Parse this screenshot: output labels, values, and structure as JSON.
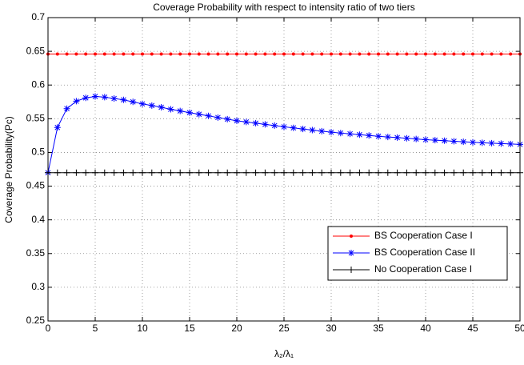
{
  "chart_data": {
    "type": "line",
    "title": "Coverage Probability with respect to intensity ratio of two tiers",
    "xlabel": "λ₂/λ₁",
    "ylabel": "Coverage Probability(Pc)",
    "x": [
      0,
      1,
      2,
      3,
      4,
      5,
      6,
      7,
      8,
      9,
      10,
      11,
      12,
      13,
      14,
      15,
      16,
      17,
      18,
      19,
      20,
      21,
      22,
      23,
      24,
      25,
      26,
      27,
      28,
      29,
      30,
      31,
      32,
      33,
      34,
      35,
      36,
      37,
      38,
      39,
      40,
      41,
      42,
      43,
      44,
      45,
      46,
      47,
      48,
      49,
      50
    ],
    "series": [
      {
        "name": "BS Cooperation Case I",
        "color": "#ff0000",
        "marker": "dot",
        "values": [
          0.646,
          0.646,
          0.646,
          0.646,
          0.646,
          0.646,
          0.646,
          0.646,
          0.646,
          0.646,
          0.646,
          0.646,
          0.646,
          0.646,
          0.646,
          0.646,
          0.646,
          0.646,
          0.646,
          0.646,
          0.646,
          0.646,
          0.646,
          0.646,
          0.646,
          0.646,
          0.646,
          0.646,
          0.646,
          0.646,
          0.646,
          0.646,
          0.646,
          0.646,
          0.646,
          0.646,
          0.646,
          0.646,
          0.646,
          0.646,
          0.646,
          0.646,
          0.646,
          0.646,
          0.646,
          0.646,
          0.646,
          0.646,
          0.646,
          0.646,
          0.646
        ]
      },
      {
        "name": "BS Cooperation Case II",
        "color": "#0000ff",
        "marker": "star",
        "values": [
          0.47,
          0.537,
          0.565,
          0.576,
          0.581,
          0.583,
          0.582,
          0.58,
          0.578,
          0.575,
          0.572,
          0.5695,
          0.567,
          0.564,
          0.5615,
          0.559,
          0.5566,
          0.5542,
          0.5518,
          0.5494,
          0.547,
          0.5452,
          0.5434,
          0.5416,
          0.5398,
          0.538,
          0.5364,
          0.5348,
          0.5332,
          0.5316,
          0.53,
          0.5288,
          0.5276,
          0.5264,
          0.5252,
          0.524,
          0.523,
          0.522,
          0.521,
          0.52,
          0.519,
          0.5182,
          0.5174,
          0.5166,
          0.5158,
          0.515,
          0.5144,
          0.5138,
          0.5132,
          0.5126,
          0.512
        ]
      },
      {
        "name": "No Cooperation Case I",
        "color": "#000000",
        "marker": "plus",
        "values": [
          0.47,
          0.47,
          0.47,
          0.47,
          0.47,
          0.47,
          0.47,
          0.47,
          0.47,
          0.47,
          0.47,
          0.47,
          0.47,
          0.47,
          0.47,
          0.47,
          0.47,
          0.47,
          0.47,
          0.47,
          0.47,
          0.47,
          0.47,
          0.47,
          0.47,
          0.47,
          0.47,
          0.47,
          0.47,
          0.47,
          0.47,
          0.47,
          0.47,
          0.47,
          0.47,
          0.47,
          0.47,
          0.47,
          0.47,
          0.47,
          0.47,
          0.47,
          0.47,
          0.47,
          0.47,
          0.47,
          0.47,
          0.47,
          0.47,
          0.47,
          0.47
        ]
      }
    ],
    "xlim": [
      0,
      50
    ],
    "xticks": [
      0,
      5,
      10,
      15,
      20,
      25,
      30,
      35,
      40,
      45,
      50
    ],
    "ylim": [
      0.25,
      0.7
    ],
    "yticks": [
      0.25,
      0.3,
      0.35,
      0.4,
      0.45,
      0.5,
      0.55,
      0.6,
      0.65,
      0.7
    ],
    "grid": true,
    "legend": "lower right"
  }
}
